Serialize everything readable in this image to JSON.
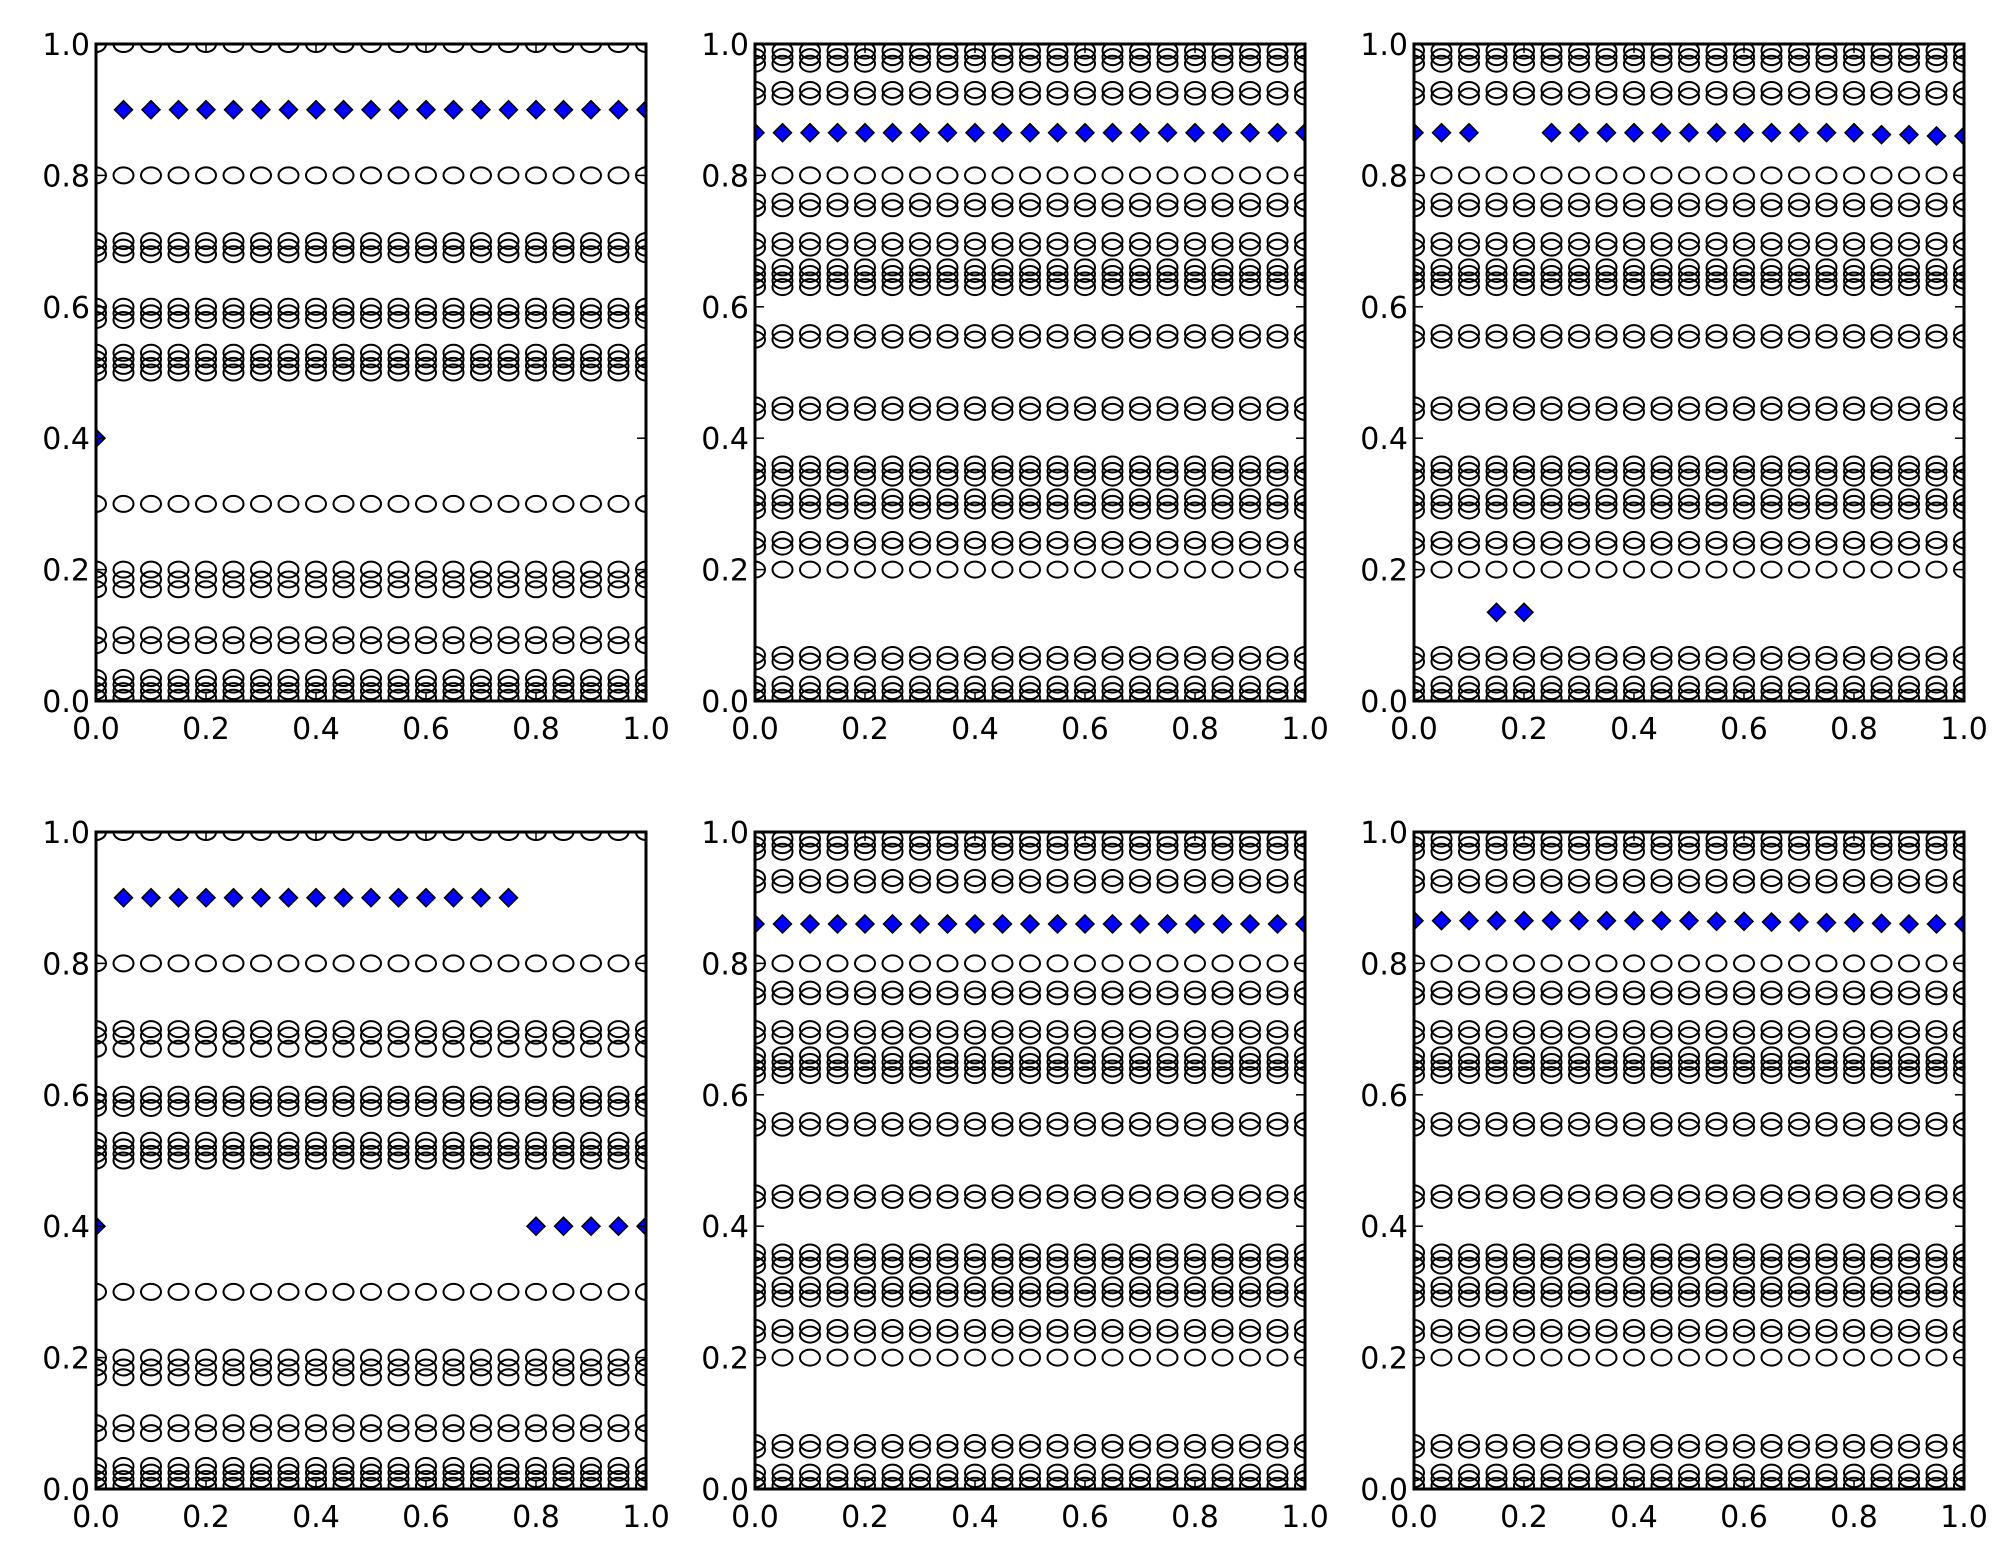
{
  "figure": {
    "layout": "2x3 grid of scatter subplots",
    "circle_marker": "open-circle",
    "highlight_marker": "diamond"
  },
  "colors": {
    "background": "#ffffff",
    "axes": "#000000",
    "circle_edge": "#000000",
    "diamond_fill": "#0000ff",
    "diamond_edge": "#000000"
  },
  "chart_data": [
    {
      "type": "scatter",
      "panel": "top-left",
      "xlim": [
        0,
        1
      ],
      "ylim": [
        0,
        1
      ],
      "xticks": [
        "0.0",
        "0.2",
        "0.4",
        "0.6",
        "0.8",
        "1.0"
      ],
      "yticks": [
        "0.0",
        "0.2",
        "0.4",
        "0.6",
        "0.8",
        "1.0"
      ],
      "grid": false,
      "x": [
        0,
        0.05,
        0.1,
        0.15,
        0.2,
        0.25,
        0.3,
        0.35,
        0.4,
        0.45,
        0.5,
        0.55,
        0.6,
        0.65,
        0.7,
        0.75,
        0.8,
        0.85,
        0.9,
        0.95,
        1.0
      ],
      "circle_rows": [
        0.005,
        0.015,
        0.025,
        0.035,
        0.085,
        0.1,
        0.17,
        0.185,
        0.2,
        0.3,
        0.5,
        0.51,
        0.52,
        0.53,
        0.58,
        0.59,
        0.6,
        0.68,
        0.69,
        0.7,
        0.8,
        1.0
      ],
      "diamond_series": [
        {
          "x": [
            0
          ],
          "y": [
            0.4
          ]
        },
        {
          "x": [
            0.05,
            0.1,
            0.15,
            0.2,
            0.25,
            0.3,
            0.35,
            0.4,
            0.45,
            0.5,
            0.55,
            0.6,
            0.65,
            0.7,
            0.75,
            0.8,
            0.85,
            0.9,
            0.95,
            1.0
          ],
          "y": [
            0.9,
            0.9,
            0.9,
            0.9,
            0.9,
            0.9,
            0.9,
            0.9,
            0.9,
            0.9,
            0.9,
            0.9,
            0.9,
            0.9,
            0.9,
            0.9,
            0.9,
            0.9,
            0.9,
            0.9
          ]
        }
      ]
    },
    {
      "type": "scatter",
      "panel": "top-middle",
      "xlim": [
        0,
        1
      ],
      "ylim": [
        0,
        1
      ],
      "xticks": [
        "0.0",
        "0.2",
        "0.4",
        "0.6",
        "0.8",
        "1.0"
      ],
      "yticks": [
        "0.0",
        "0.2",
        "0.4",
        "0.6",
        "0.8",
        "1.0"
      ],
      "grid": false,
      "x": [
        0,
        0.05,
        0.1,
        0.15,
        0.2,
        0.25,
        0.3,
        0.35,
        0.4,
        0.45,
        0.5,
        0.55,
        0.6,
        0.65,
        0.7,
        0.75,
        0.8,
        0.85,
        0.9,
        0.95,
        1.0
      ],
      "circle_rows": [
        0.005,
        0.015,
        0.025,
        0.06,
        0.07,
        0.2,
        0.235,
        0.245,
        0.29,
        0.3,
        0.31,
        0.34,
        0.35,
        0.36,
        0.44,
        0.45,
        0.55,
        0.56,
        0.63,
        0.64,
        0.65,
        0.66,
        0.69,
        0.7,
        0.75,
        0.76,
        0.8,
        0.92,
        0.93,
        0.97,
        0.98,
        0.99
      ],
      "diamond_series": [
        {
          "x": [
            0,
            0.05,
            0.1,
            0.15,
            0.2,
            0.25,
            0.3,
            0.35,
            0.4,
            0.45,
            0.5,
            0.55,
            0.6,
            0.65,
            0.7,
            0.75,
            0.8,
            0.85,
            0.9,
            0.95,
            1.0
          ],
          "y": [
            0.865,
            0.865,
            0.865,
            0.865,
            0.865,
            0.865,
            0.865,
            0.865,
            0.865,
            0.865,
            0.865,
            0.865,
            0.865,
            0.865,
            0.865,
            0.865,
            0.865,
            0.865,
            0.865,
            0.865,
            0.865
          ]
        }
      ]
    },
    {
      "type": "scatter",
      "panel": "top-right",
      "xlim": [
        0,
        1
      ],
      "ylim": [
        0,
        1
      ],
      "xticks": [
        "0.0",
        "0.2",
        "0.4",
        "0.6",
        "0.8",
        "1.0"
      ],
      "yticks": [
        "0.0",
        "0.2",
        "0.4",
        "0.6",
        "0.8",
        "1.0"
      ],
      "grid": false,
      "x": [
        0,
        0.05,
        0.1,
        0.15,
        0.2,
        0.25,
        0.3,
        0.35,
        0.4,
        0.45,
        0.5,
        0.55,
        0.6,
        0.65,
        0.7,
        0.75,
        0.8,
        0.85,
        0.9,
        0.95,
        1.0
      ],
      "circle_rows": [
        0.005,
        0.015,
        0.025,
        0.06,
        0.07,
        0.2,
        0.235,
        0.245,
        0.29,
        0.3,
        0.31,
        0.34,
        0.35,
        0.36,
        0.44,
        0.45,
        0.55,
        0.56,
        0.63,
        0.64,
        0.65,
        0.66,
        0.69,
        0.7,
        0.75,
        0.76,
        0.8,
        0.92,
        0.93,
        0.97,
        0.98,
        0.99
      ],
      "diamond_series": [
        {
          "x": [
            0,
            0.05,
            0.1,
            0.25,
            0.3,
            0.35,
            0.4,
            0.45,
            0.5,
            0.55,
            0.6,
            0.65,
            0.7,
            0.75,
            0.8,
            0.85,
            0.9,
            0.95,
            1.0
          ],
          "y": [
            0.865,
            0.865,
            0.865,
            0.865,
            0.865,
            0.865,
            0.865,
            0.865,
            0.865,
            0.865,
            0.865,
            0.865,
            0.865,
            0.865,
            0.865,
            0.862,
            0.862,
            0.86,
            0.86
          ]
        },
        {
          "x": [
            0.15,
            0.2
          ],
          "y": [
            0.135,
            0.135
          ]
        }
      ]
    },
    {
      "type": "scatter",
      "panel": "bottom-left",
      "xlim": [
        0,
        1
      ],
      "ylim": [
        0,
        1
      ],
      "xticks": [
        "0.0",
        "0.2",
        "0.4",
        "0.6",
        "0.8",
        "1.0"
      ],
      "yticks": [
        "0.0",
        "0.2",
        "0.4",
        "0.6",
        "0.8",
        "1.0"
      ],
      "grid": false,
      "x": [
        0,
        0.05,
        0.1,
        0.15,
        0.2,
        0.25,
        0.3,
        0.35,
        0.4,
        0.45,
        0.5,
        0.55,
        0.6,
        0.65,
        0.7,
        0.75,
        0.8,
        0.85,
        0.9,
        0.95,
        1.0
      ],
      "circle_rows": [
        0.005,
        0.015,
        0.025,
        0.035,
        0.085,
        0.1,
        0.17,
        0.185,
        0.2,
        0.3,
        0.5,
        0.51,
        0.52,
        0.53,
        0.58,
        0.59,
        0.6,
        0.67,
        0.69,
        0.7,
        0.8,
        1.0
      ],
      "diamond_series": [
        {
          "x": [
            0,
            0.8,
            0.85,
            0.9,
            0.95,
            1.0
          ],
          "y": [
            0.4,
            0.4,
            0.4,
            0.4,
            0.4,
            0.4
          ]
        },
        {
          "x": [
            0.05,
            0.1,
            0.15,
            0.2,
            0.25,
            0.3,
            0.35,
            0.4,
            0.45,
            0.5,
            0.55,
            0.6,
            0.65,
            0.7,
            0.75
          ],
          "y": [
            0.9,
            0.9,
            0.9,
            0.9,
            0.9,
            0.9,
            0.9,
            0.9,
            0.9,
            0.9,
            0.9,
            0.9,
            0.9,
            0.9,
            0.9
          ]
        }
      ]
    },
    {
      "type": "scatter",
      "panel": "bottom-middle",
      "xlim": [
        0,
        1
      ],
      "ylim": [
        0,
        1
      ],
      "xticks": [
        "0.0",
        "0.2",
        "0.4",
        "0.6",
        "0.8",
        "1.0"
      ],
      "yticks": [
        "0.0",
        "0.2",
        "0.4",
        "0.6",
        "0.8",
        "1.0"
      ],
      "grid": false,
      "x": [
        0,
        0.05,
        0.1,
        0.15,
        0.2,
        0.25,
        0.3,
        0.35,
        0.4,
        0.45,
        0.5,
        0.55,
        0.6,
        0.65,
        0.7,
        0.75,
        0.8,
        0.85,
        0.9,
        0.95,
        1.0
      ],
      "circle_rows": [
        0.005,
        0.015,
        0.025,
        0.06,
        0.07,
        0.2,
        0.235,
        0.245,
        0.29,
        0.3,
        0.31,
        0.34,
        0.35,
        0.36,
        0.44,
        0.45,
        0.55,
        0.56,
        0.63,
        0.64,
        0.65,
        0.66,
        0.69,
        0.7,
        0.75,
        0.76,
        0.8,
        0.92,
        0.93,
        0.97,
        0.98,
        0.99
      ],
      "diamond_series": [
        {
          "x": [
            0,
            0.05,
            0.1,
            0.15,
            0.2,
            0.25,
            0.3,
            0.35,
            0.4,
            0.45,
            0.5,
            0.55,
            0.6,
            0.65,
            0.7,
            0.75,
            0.8,
            0.85,
            0.9,
            0.95,
            1.0
          ],
          "y": [
            0.86,
            0.86,
            0.86,
            0.86,
            0.86,
            0.86,
            0.86,
            0.86,
            0.86,
            0.86,
            0.86,
            0.86,
            0.86,
            0.86,
            0.86,
            0.86,
            0.86,
            0.86,
            0.86,
            0.86,
            0.86
          ]
        }
      ]
    },
    {
      "type": "scatter",
      "panel": "bottom-right",
      "xlim": [
        0,
        1
      ],
      "ylim": [
        0,
        1
      ],
      "xticks": [
        "0.0",
        "0.2",
        "0.4",
        "0.6",
        "0.8",
        "1.0"
      ],
      "yticks": [
        "0.0",
        "0.2",
        "0.4",
        "0.6",
        "0.8",
        "1.0"
      ],
      "grid": false,
      "x": [
        0,
        0.05,
        0.1,
        0.15,
        0.2,
        0.25,
        0.3,
        0.35,
        0.4,
        0.45,
        0.5,
        0.55,
        0.6,
        0.65,
        0.7,
        0.75,
        0.8,
        0.85,
        0.9,
        0.95,
        1.0
      ],
      "circle_rows": [
        0.005,
        0.015,
        0.025,
        0.06,
        0.07,
        0.2,
        0.235,
        0.245,
        0.29,
        0.3,
        0.31,
        0.34,
        0.35,
        0.36,
        0.44,
        0.45,
        0.55,
        0.56,
        0.63,
        0.64,
        0.65,
        0.66,
        0.69,
        0.7,
        0.75,
        0.76,
        0.8,
        0.92,
        0.93,
        0.97,
        0.98,
        0.99
      ],
      "diamond_series": [
        {
          "x": [
            0,
            0.05,
            0.1,
            0.15,
            0.2,
            0.25,
            0.3,
            0.35,
            0.4,
            0.45,
            0.5,
            0.55,
            0.6,
            0.65,
            0.7,
            0.75,
            0.8,
            0.85,
            0.9,
            0.95,
            1.0
          ],
          "y": [
            0.865,
            0.865,
            0.865,
            0.865,
            0.865,
            0.865,
            0.865,
            0.865,
            0.865,
            0.865,
            0.865,
            0.864,
            0.864,
            0.863,
            0.863,
            0.862,
            0.862,
            0.861,
            0.86,
            0.86,
            0.86
          ]
        }
      ]
    }
  ]
}
